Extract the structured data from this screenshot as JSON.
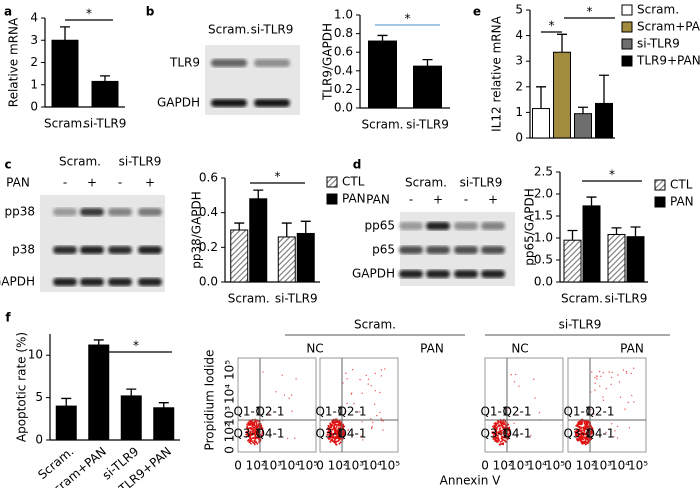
{
  "panel_labels": [
    "a",
    "b",
    "c",
    "d",
    "e",
    "f"
  ],
  "blot_b": {
    "lanes": [
      "Scram.",
      "si-TLR9"
    ],
    "rows": [
      "TLR9",
      "GAPDH"
    ]
  },
  "blot_c": {
    "lanes": [
      "Scram.",
      "si-TLR9"
    ],
    "treatment": "PAN",
    "signs": [
      "-",
      "+",
      "-",
      "+"
    ],
    "rows": [
      "pp38",
      "p38",
      "GAPDH"
    ]
  },
  "blot_d": {
    "lanes": [
      "Scram.",
      "si-TLR9"
    ],
    "treatment": "PAN",
    "signs": [
      "-",
      "+",
      "-",
      "+"
    ],
    "rows": [
      "pp65",
      "p65",
      "GAPDH"
    ]
  },
  "flow": {
    "groups": [
      "Scram.",
      "si-TLR9"
    ],
    "conditions": [
      "NC",
      "PAN",
      "NC",
      "PAN"
    ],
    "ylabel": "Propidium Iodide",
    "xlabel": "Annexin Ⅴ",
    "ticks": [
      "0 10²",
      "10³",
      "10⁴",
      "10⁵"
    ],
    "quadrants": [
      "Q1-1",
      "Q2-1",
      "Q3-1",
      "Q4-1"
    ]
  },
  "chart_data": [
    {
      "type": "bar",
      "ylabel": "Relative mRNA",
      "categories": [
        "Scram.",
        "si-TLR9"
      ],
      "values": [
        3.0,
        1.15
      ],
      "errors": [
        0.6,
        0.25
      ],
      "color": "#000000",
      "ylim": [
        0,
        4
      ],
      "yticks": [
        0,
        1,
        2,
        3,
        4
      ],
      "annotations": [
        "*"
      ]
    },
    {
      "type": "bar",
      "ylabel": "TLR9/GAPDH",
      "categories": [
        "Scram.",
        "si-TLR9"
      ],
      "values": [
        0.72,
        0.45
      ],
      "errors": [
        0.06,
        0.07
      ],
      "color": "#000000",
      "ylim": [
        0,
        1
      ],
      "yticks": [
        {
          "value": 0,
          "label": "0.0"
        },
        0.2,
        0.4,
        0.6,
        0.8,
        {
          "value": 1,
          "label": "1.0"
        }
      ],
      "annotations": [
        "*"
      ]
    },
    {
      "type": "bar",
      "ylabel": "pp38/GAPDH",
      "categories": [
        "Scram.",
        "si-TLR9"
      ],
      "series": [
        {
          "name": "CTL",
          "color": "#777777",
          "hatch": true,
          "values": [
            0.3,
            0.26
          ],
          "errors": [
            0.04,
            0.08
          ]
        },
        {
          "name": "PAN",
          "color": "#000000",
          "values": [
            0.48,
            0.28
          ],
          "errors": [
            0.05,
            0.07
          ]
        }
      ],
      "ylim": [
        0,
        0.6
      ],
      "yticks": [
        {
          "value": 0,
          "label": "0.0"
        },
        0.2,
        0.4,
        0.6
      ],
      "annotations": [
        "*"
      ]
    },
    {
      "type": "bar",
      "ylabel": "pp65/GAPDH",
      "categories": [
        "Scram.",
        "si-TLR9"
      ],
      "series": [
        {
          "name": "CTL",
          "color": "#777777",
          "hatch": true,
          "values": [
            0.95,
            1.08
          ],
          "errors": [
            0.22,
            0.15
          ]
        },
        {
          "name": "PAN",
          "color": "#000000",
          "values": [
            1.73,
            1.03
          ],
          "errors": [
            0.2,
            0.22
          ]
        }
      ],
      "ylim": [
        0,
        2.5
      ],
      "yticks": [
        {
          "value": 0,
          "label": "0.0"
        },
        0.5,
        {
          "value": 1,
          "label": "1.0"
        },
        1.5,
        {
          "value": 2,
          "label": "2.0"
        },
        2.5
      ],
      "annotations": [
        "*"
      ]
    },
    {
      "type": "bar",
      "ylabel": "IL12 relative mRNA",
      "series": [
        {
          "name": "Scram.",
          "color": "#ffffff",
          "values": [
            1.15
          ],
          "errors": [
            0.85
          ]
        },
        {
          "name": "Scram+PAN",
          "color": "#a08c3c",
          "values": [
            3.35
          ],
          "errors": [
            0.7
          ]
        },
        {
          "name": "si-TLR9",
          "color": "#6e6e6e",
          "values": [
            0.95
          ],
          "errors": [
            0.25
          ]
        },
        {
          "name": "TLR9+PAN",
          "color": "#000000",
          "values": [
            1.35
          ],
          "errors": [
            1.1
          ]
        }
      ],
      "ylim": [
        0,
        5
      ],
      "yticks": [
        0,
        1,
        2,
        3,
        4,
        5
      ],
      "annotations": [
        "*",
        "*"
      ]
    },
    {
      "type": "bar",
      "ylabel": "Apoptotic rate (%)",
      "categories": [
        "Scram.",
        "Scram+PAN",
        "si-TLR9",
        "TLR9+PAN"
      ],
      "values": [
        4.0,
        11.2,
        5.2,
        3.8
      ],
      "errors": [
        0.9,
        0.6,
        0.8,
        0.6
      ],
      "color": "#000000",
      "ylim": [
        0,
        12.5
      ],
      "yticks": [
        0,
        5,
        10
      ],
      "annotations": [
        "*"
      ]
    }
  ]
}
